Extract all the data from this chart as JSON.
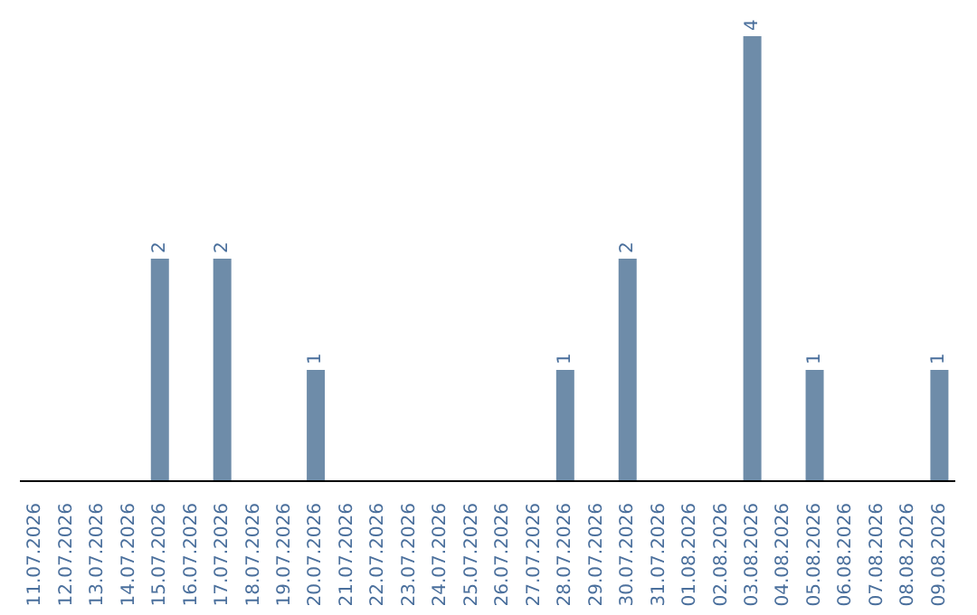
{
  "chart_data": {
    "type": "bar",
    "categories": [
      "11.07.2026",
      "12.07.2026",
      "13.07.2026",
      "14.07.2026",
      "15.07.2026",
      "16.07.2026",
      "17.07.2026",
      "18.07.2026",
      "19.07.2026",
      "20.07.2026",
      "21.07.2026",
      "22.07.2026",
      "23.07.2026",
      "24.07.2026",
      "25.07.2026",
      "26.07.2026",
      "27.07.2026",
      "28.07.2026",
      "29.07.2026",
      "30.07.2026",
      "31.07.2026",
      "01.08.2026",
      "02.08.2026",
      "03.08.2026",
      "04.08.2026",
      "05.08.2026",
      "06.08.2026",
      "07.08.2026",
      "08.08.2026",
      "09.08.2026"
    ],
    "values": [
      0,
      0,
      0,
      0,
      2,
      0,
      2,
      0,
      0,
      1,
      0,
      0,
      0,
      0,
      0,
      0,
      0,
      1,
      0,
      2,
      0,
      0,
      0,
      4,
      0,
      1,
      0,
      0,
      0,
      1
    ],
    "value_labels": [
      null,
      null,
      null,
      null,
      "2",
      null,
      "2",
      null,
      null,
      "1",
      null,
      null,
      null,
      null,
      null,
      null,
      null,
      "1",
      null,
      "2",
      null,
      null,
      null,
      "4",
      null,
      "1",
      null,
      null,
      null,
      "1"
    ],
    "color": "#6e8ca9",
    "tick_labels": "x"
  }
}
